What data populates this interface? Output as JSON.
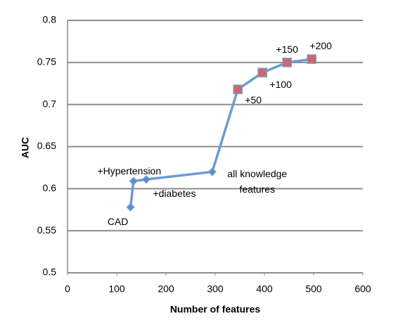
{
  "chart_data": {
    "type": "line",
    "xlabel": "Number of features",
    "ylabel": "AUC",
    "xlim": [
      0,
      600
    ],
    "xticks": [
      0,
      100,
      200,
      300,
      400,
      500,
      600
    ],
    "ylim": [
      0.5,
      0.8
    ],
    "yticks": [
      0.5,
      0.55,
      0.6,
      0.65,
      0.7,
      0.75,
      0.8
    ],
    "grid": true,
    "x": [
      128,
      134,
      160,
      294,
      346,
      396,
      446,
      496
    ],
    "series": [
      {
        "color": "#6a9bd1",
        "values": [
          0.578,
          0.609,
          0.611,
          0.62,
          0.718,
          0.738,
          0.75,
          0.754
        ],
        "markers": [
          "diamond",
          "diamond",
          "diamond",
          "diamond",
          "square",
          "square",
          "square",
          "square"
        ],
        "marker_colors": [
          "#5b8ec9",
          "#5b8ec9",
          "#5b8ec9",
          "#5b8ec9",
          "#d9626a",
          "#d9626a",
          "#d9626a",
          "#d9626a"
        ],
        "point_labels": [
          "CAD",
          "+Hypertension",
          "+diabetes",
          "all knowledge features",
          "+50",
          "+100",
          "+150",
          "+200"
        ]
      }
    ]
  }
}
